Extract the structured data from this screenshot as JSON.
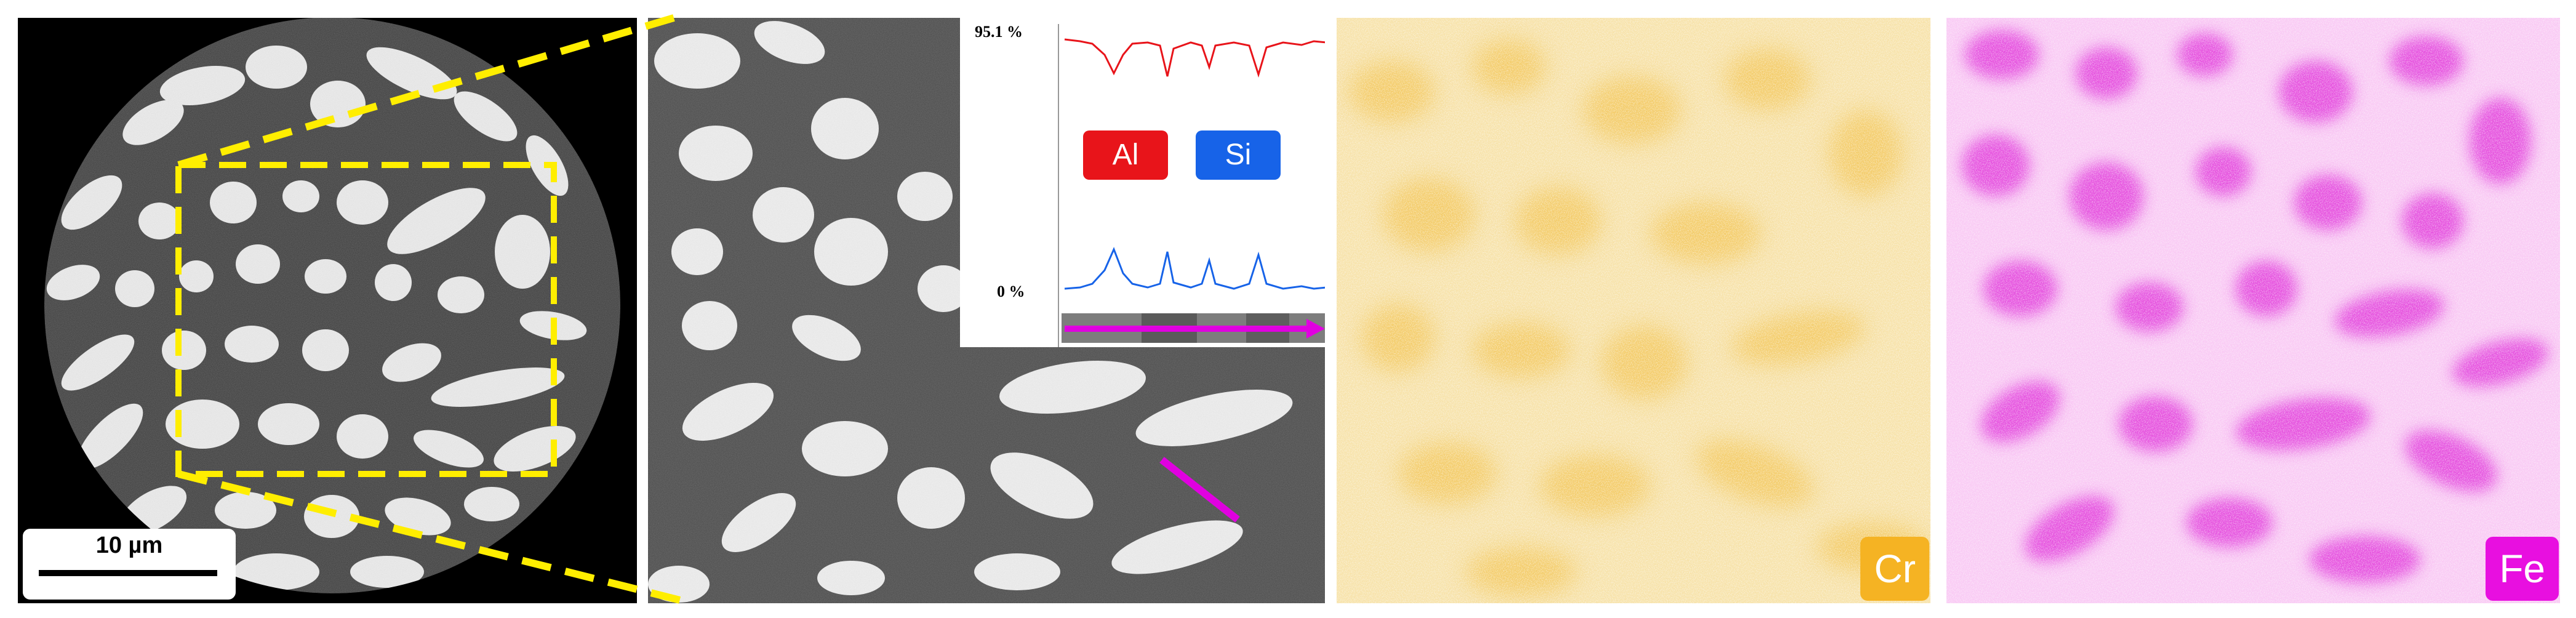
{
  "panels": {
    "overview": {
      "scale_bar": "10 µm"
    },
    "linescan": {
      "y_max_label": "95.1 %",
      "y_min_label": "0 %",
      "elements": [
        {
          "symbol": "Al",
          "color": "#e8141a"
        },
        {
          "symbol": "Si",
          "color": "#1763e8"
        }
      ],
      "scan_line_color": "#e000e0"
    },
    "map_cr": {
      "label": "Cr",
      "color": "#f5b323"
    },
    "map_fe": {
      "label": "Fe",
      "color": "#e80fe0"
    }
  },
  "colors": {
    "zoom_box": "#ffee00"
  }
}
